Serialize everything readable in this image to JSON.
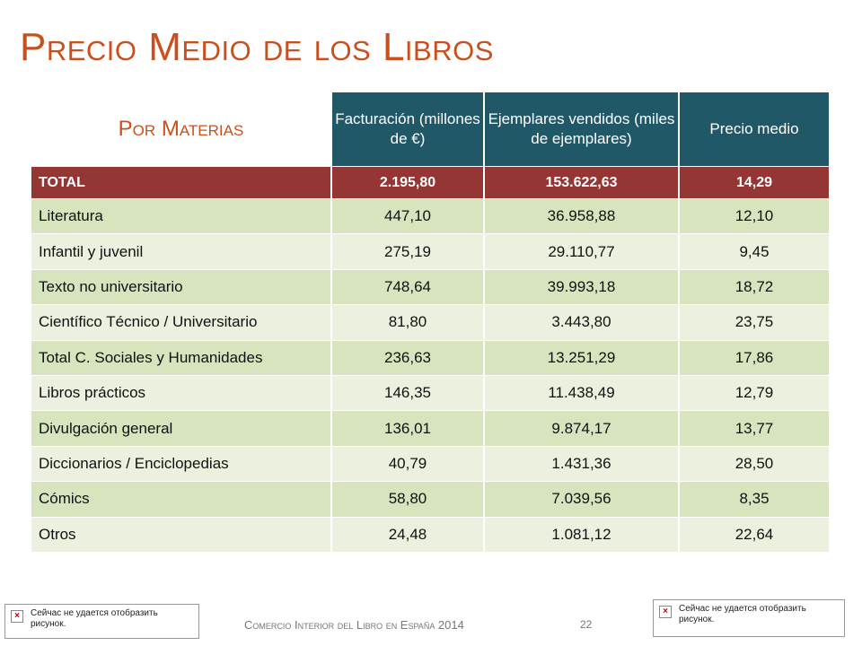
{
  "title": "Precio Medio de los Libros",
  "table": {
    "header": [
      "Por Materias",
      "Facturación (millones de €)",
      "Ejemplares vendidos (miles de ejemplares)",
      "Precio medio"
    ],
    "rows": [
      [
        "TOTAL",
        "2.195,80",
        "153.622,63",
        "14,29"
      ],
      [
        "Literatura",
        "447,10",
        "36.958,88",
        "12,10"
      ],
      [
        "Infantil y juvenil",
        "275,19",
        "29.110,77",
        "9,45"
      ],
      [
        "Texto no universitario",
        "748,64",
        "39.993,18",
        "18,72"
      ],
      [
        "Científico Técnico / Universitario",
        "81,80",
        "3.443,80",
        "23,75"
      ],
      [
        "Total C. Sociales y Humanidades",
        "236,63",
        "13.251,29",
        "17,86"
      ],
      [
        "Libros prácticos",
        "146,35",
        "11.438,49",
        "12,79"
      ],
      [
        "Divulgación general",
        "136,01",
        "9.874,17",
        "13,77"
      ],
      [
        "Diccionarios / Enciclopedias",
        "40,79",
        "1.431,36",
        "28,50"
      ],
      [
        "Cómics",
        "58,80",
        "7.039,56",
        "8,35"
      ],
      [
        "Otros",
        "24,48",
        "1.081,12",
        "22,64"
      ]
    ]
  },
  "footer": {
    "text": "Comercio Interior del Libro en España 2014",
    "page": "22"
  },
  "placeholders": [
    "Сейчас не удается отобразить рисунок.",
    "Сейчас не удается отобразить рисунок."
  ]
}
